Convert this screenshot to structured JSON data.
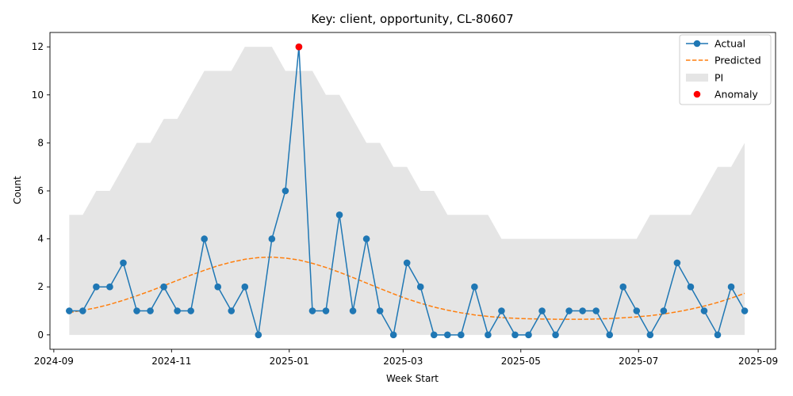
{
  "chart_data": {
    "type": "line",
    "title": "Key: client, opportunity, CL-80607",
    "xlabel": "Week Start",
    "ylabel": "Count",
    "xlim": [
      "2024-08-30",
      "2025-09-10"
    ],
    "ylim": [
      -0.6,
      12.6
    ],
    "y_ticks": [
      0,
      2,
      4,
      6,
      8,
      10,
      12
    ],
    "x_ticks": [
      {
        "date": "2024-09-01",
        "label": "2024-09"
      },
      {
        "date": "2024-11-01",
        "label": "2024-11"
      },
      {
        "date": "2025-01-01",
        "label": "2025-01"
      },
      {
        "date": "2025-03-01",
        "label": "2025-03"
      },
      {
        "date": "2025-05-01",
        "label": "2025-05"
      },
      {
        "date": "2025-07-01",
        "label": "2025-07"
      },
      {
        "date": "2025-09-01",
        "label": "2025-09"
      }
    ],
    "x": [
      "2024-09-09",
      "2024-09-16",
      "2024-09-23",
      "2024-09-30",
      "2024-10-07",
      "2024-10-14",
      "2024-10-21",
      "2024-10-28",
      "2024-11-04",
      "2024-11-11",
      "2024-11-18",
      "2024-11-25",
      "2024-12-02",
      "2024-12-09",
      "2024-12-16",
      "2024-12-23",
      "2024-12-30",
      "2025-01-06",
      "2025-01-13",
      "2025-01-20",
      "2025-01-27",
      "2025-02-03",
      "2025-02-10",
      "2025-02-17",
      "2025-02-24",
      "2025-03-03",
      "2025-03-10",
      "2025-03-17",
      "2025-03-24",
      "2025-03-31",
      "2025-04-07",
      "2025-04-14",
      "2025-04-21",
      "2025-04-28",
      "2025-05-05",
      "2025-05-12",
      "2025-05-19",
      "2025-05-26",
      "2025-06-02",
      "2025-06-09",
      "2025-06-16",
      "2025-06-23",
      "2025-06-30",
      "2025-07-07",
      "2025-07-14",
      "2025-07-21",
      "2025-07-28",
      "2025-08-04",
      "2025-08-11",
      "2025-08-18",
      "2025-08-25"
    ],
    "series": [
      {
        "name": "Actual",
        "color": "#1f77b4",
        "style": "line-marker",
        "values": [
          1,
          1,
          2,
          2,
          3,
          1,
          1,
          2,
          1,
          1,
          4,
          2,
          1,
          2,
          0,
          4,
          6,
          12,
          1,
          1,
          5,
          1,
          4,
          1,
          0,
          3,
          2,
          0,
          0,
          0,
          2,
          0,
          1,
          0,
          0,
          1,
          0,
          1,
          1,
          1,
          0,
          2,
          1,
          0,
          1,
          3,
          2,
          1,
          0,
          2,
          1
        ]
      },
      {
        "name": "Predicted",
        "color": "#ff7f0e",
        "style": "dashed",
        "values": [
          0.93,
          1.02,
          1.13,
          1.27,
          1.44,
          1.63,
          1.83,
          2.05,
          2.27,
          2.49,
          2.69,
          2.88,
          3.03,
          3.15,
          3.22,
          3.24,
          3.2,
          3.12,
          2.98,
          2.81,
          2.61,
          2.39,
          2.16,
          1.93,
          1.71,
          1.5,
          1.32,
          1.16,
          1.03,
          0.92,
          0.83,
          0.77,
          0.72,
          0.69,
          0.67,
          0.66,
          0.65,
          0.65,
          0.65,
          0.66,
          0.68,
          0.71,
          0.75,
          0.8,
          0.87,
          0.96,
          1.07,
          1.2,
          1.35,
          1.53,
          1.73
        ]
      }
    ],
    "interval": {
      "name": "PI",
      "color": "#e5e5e5",
      "lower": [
        0,
        0,
        0,
        0,
        0,
        0,
        0,
        0,
        0,
        0,
        0,
        0,
        0,
        0,
        0,
        0,
        0,
        0,
        0,
        0,
        0,
        0,
        0,
        0,
        0,
        0,
        0,
        0,
        0,
        0,
        0,
        0,
        0,
        0,
        0,
        0,
        0,
        0,
        0,
        0,
        0,
        0,
        0,
        0,
        0,
        0,
        0,
        0,
        0,
        0,
        0
      ],
      "upper": [
        5,
        5,
        6,
        6,
        7,
        8,
        8,
        9,
        9,
        10,
        11,
        11,
        11,
        12,
        12,
        12,
        11,
        11,
        11,
        10,
        10,
        9,
        8,
        8,
        7,
        7,
        6,
        6,
        5,
        5,
        5,
        5,
        4,
        4,
        4,
        4,
        4,
        4,
        4,
        4,
        4,
        4,
        4,
        5,
        5,
        5,
        5,
        6,
        7,
        7,
        8
      ]
    },
    "anomalies": [
      {
        "name": "Anomaly",
        "date": "2025-01-06",
        "value": 12,
        "color": "#ff0000"
      }
    ],
    "legend": {
      "position": "top-right",
      "entries": [
        "Actual",
        "Predicted",
        "PI",
        "Anomaly"
      ]
    },
    "grid": false
  }
}
